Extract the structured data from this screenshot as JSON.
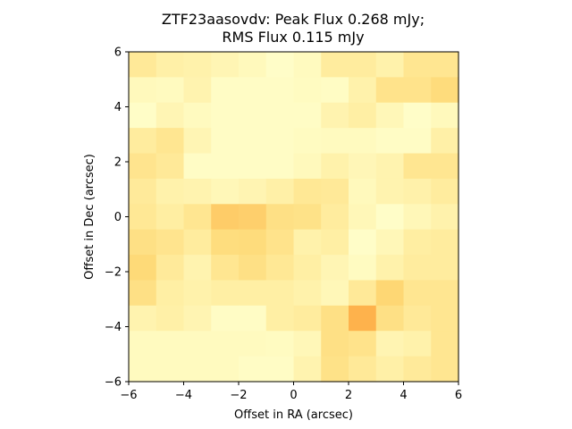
{
  "chart_data": {
    "type": "heatmap",
    "title_lines": [
      "ZTF23aasovdv: Peak Flux 0.268 mJy;",
      "RMS Flux 0.115 mJy"
    ],
    "xlabel": "Offset in RA (arcsec)",
    "ylabel": "Offset in Dec (arcsec)",
    "xlim": [
      -6,
      6
    ],
    "ylim": [
      -6,
      6
    ],
    "xticks": [
      -6,
      -4,
      -2,
      0,
      2,
      4,
      6
    ],
    "yticks": [
      -6,
      -4,
      -2,
      0,
      2,
      4,
      6
    ],
    "grid": false,
    "colormap": [
      "#ffffcc",
      "#ffeda0",
      "#fed976",
      "#feb24c"
    ],
    "value_range": [
      0,
      1
    ],
    "rows_top_to_bottom": [
      [
        0.4,
        0.28,
        0.25,
        0.18,
        0.12,
        0.03,
        0.1,
        0.35,
        0.35,
        0.25,
        0.45,
        0.45
      ],
      [
        0.12,
        0.1,
        0.22,
        0.05,
        0.05,
        0.05,
        0.08,
        0.06,
        0.25,
        0.5,
        0.5,
        0.62
      ],
      [
        0.04,
        0.18,
        0.1,
        0.05,
        0.05,
        0.05,
        0.05,
        0.22,
        0.3,
        0.15,
        0.03,
        0.12
      ],
      [
        0.35,
        0.45,
        0.18,
        0.05,
        0.05,
        0.05,
        0.08,
        0.1,
        0.1,
        0.05,
        0.05,
        0.28
      ],
      [
        0.48,
        0.4,
        0.05,
        0.05,
        0.05,
        0.05,
        0.12,
        0.25,
        0.16,
        0.22,
        0.45,
        0.45
      ],
      [
        0.38,
        0.25,
        0.22,
        0.15,
        0.2,
        0.28,
        0.42,
        0.4,
        0.12,
        0.22,
        0.26,
        0.35
      ],
      [
        0.42,
        0.32,
        0.45,
        0.78,
        0.75,
        0.55,
        0.52,
        0.35,
        0.15,
        0.03,
        0.15,
        0.24
      ],
      [
        0.55,
        0.48,
        0.35,
        0.6,
        0.62,
        0.5,
        0.25,
        0.3,
        0.03,
        0.15,
        0.32,
        0.35
      ],
      [
        0.65,
        0.38,
        0.22,
        0.45,
        0.55,
        0.42,
        0.3,
        0.18,
        0.08,
        0.25,
        0.35,
        0.35
      ],
      [
        0.55,
        0.3,
        0.25,
        0.3,
        0.3,
        0.3,
        0.25,
        0.15,
        0.4,
        0.68,
        0.45,
        0.45
      ],
      [
        0.22,
        0.28,
        0.2,
        0.05,
        0.05,
        0.3,
        0.35,
        0.55,
        1.0,
        0.55,
        0.4,
        0.45
      ],
      [
        0.1,
        0.1,
        0.1,
        0.1,
        0.1,
        0.08,
        0.15,
        0.55,
        0.5,
        0.2,
        0.25,
        0.45
      ],
      [
        0.1,
        0.1,
        0.1,
        0.1,
        0.05,
        0.05,
        0.22,
        0.52,
        0.4,
        0.28,
        0.38,
        0.45
      ]
    ]
  }
}
